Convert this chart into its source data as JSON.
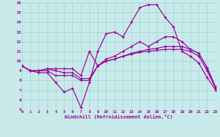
{
  "background_color": "#c8eaea",
  "grid_color": "#a8d4d4",
  "line_color": "#990099",
  "xlim": [
    0,
    23
  ],
  "ylim": [
    5,
    16
  ],
  "xticks": [
    0,
    1,
    2,
    3,
    4,
    5,
    6,
    7,
    8,
    9,
    10,
    11,
    12,
    13,
    14,
    15,
    16,
    17,
    18,
    19,
    20,
    21,
    22,
    23
  ],
  "yticks": [
    5,
    6,
    7,
    8,
    9,
    10,
    11,
    12,
    13,
    14,
    15,
    16
  ],
  "xlabel": "Windchill (Refroidissement éolien,°C)",
  "series": [
    [
      9.5,
      9.0,
      9.0,
      9.0,
      8.5,
      8.5,
      8.5,
      8.0,
      8.0,
      9.5,
      10.0,
      10.2,
      10.5,
      10.7,
      10.9,
      11.0,
      11.1,
      11.2,
      11.2,
      11.2,
      11.0,
      10.5,
      9.0,
      7.2
    ],
    [
      9.5,
      9.0,
      9.0,
      9.2,
      9.0,
      8.8,
      8.8,
      8.2,
      8.2,
      9.5,
      10.0,
      10.2,
      10.5,
      10.8,
      11.0,
      11.2,
      11.3,
      11.5,
      11.5,
      11.5,
      11.2,
      10.8,
      9.3,
      7.3
    ],
    [
      9.5,
      9.0,
      9.0,
      9.2,
      9.2,
      9.2,
      9.2,
      8.5,
      11.0,
      9.5,
      10.2,
      10.5,
      11.0,
      11.5,
      12.0,
      11.5,
      12.0,
      12.5,
      12.5,
      12.0,
      11.2,
      10.8,
      9.3,
      7.3
    ],
    [
      9.5,
      9.0,
      8.8,
      8.8,
      7.8,
      6.8,
      7.2,
      5.2,
      7.8,
      11.0,
      12.8,
      13.0,
      12.5,
      14.0,
      15.5,
      15.8,
      15.8,
      14.5,
      13.5,
      11.0,
      10.5,
      9.8,
      8.3,
      7.0
    ]
  ]
}
